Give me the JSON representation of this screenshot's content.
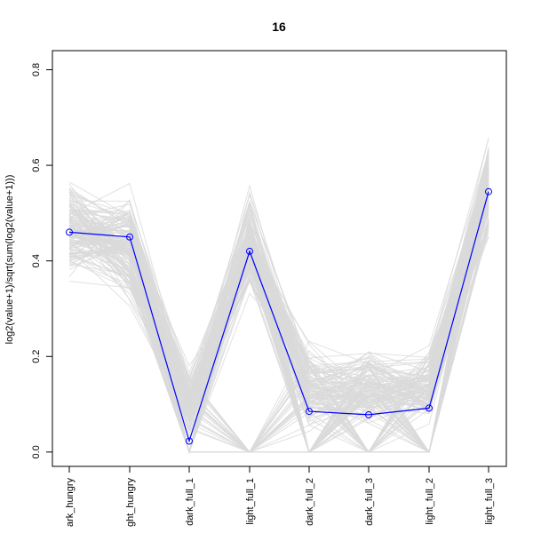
{
  "chart_data": {
    "type": "line",
    "title": "16",
    "xlabel": "",
    "ylabel": "log2(value+1)/sqrt(sum(log2(value+1)))",
    "categories": [
      "dark_hungry",
      "light_hungry",
      "dark_full_1",
      "light_full_1",
      "dark_full_2",
      "dark_full_3",
      "light_full_2",
      "light_full_3"
    ],
    "xtick_labels": [
      "ark_hungry",
      "ght_hungry",
      "dark_full_1",
      "light_full_1",
      "dark_full_2",
      "dark_full_3",
      "light_full_2",
      "light_full_3"
    ],
    "y_ticks": [
      0.0,
      0.2,
      0.4,
      0.6,
      0.8
    ],
    "y_tick_labels": [
      "0.0",
      "0.2",
      "0.4",
      "0.6",
      "0.8"
    ],
    "ylim": [
      -0.03,
      0.84
    ],
    "series": [
      {
        "values": [
          0.46,
          0.45,
          0.023,
          0.42,
          0.085,
          0.078,
          0.092,
          0.545
        ],
        "color": "#0000ff",
        "markers": "open-circle"
      }
    ],
    "background_lines": {
      "color": "#d9d9d9",
      "count": 150,
      "ranges": [
        [
          0.24,
          0.7
        ],
        [
          0.15,
          0.68
        ],
        [
          0.0,
          0.32
        ],
        [
          0.22,
          0.69
        ],
        [
          0.0,
          0.36
        ],
        [
          0.0,
          0.37
        ],
        [
          0.0,
          0.36
        ],
        [
          0.34,
          0.8
        ]
      ]
    },
    "grid": false,
    "legend": "none"
  }
}
